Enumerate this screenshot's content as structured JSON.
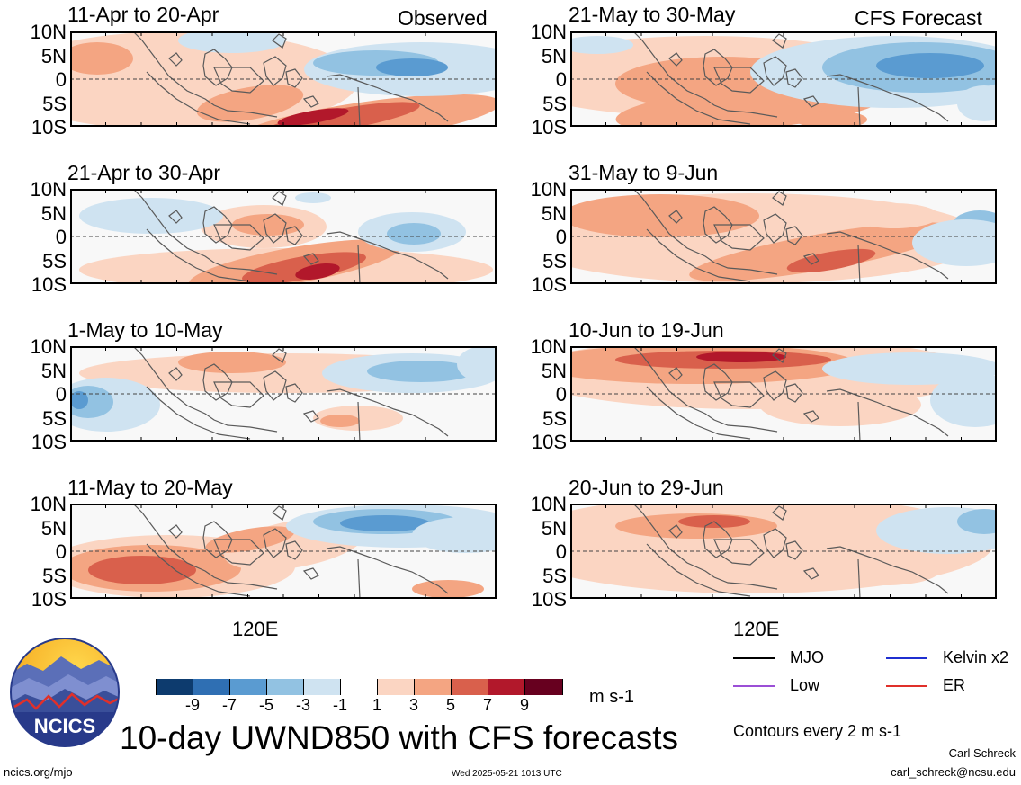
{
  "title": "10-day UWND850 with CFS forecasts",
  "columns": {
    "observed": "Observed",
    "forecast": "CFS Forecast"
  },
  "y_ticks": [
    "10N",
    "5N",
    "0",
    "5S",
    "10S"
  ],
  "x_tick": "120E",
  "panels_left": [
    {
      "title": "11-Apr to 20-Apr"
    },
    {
      "title": "21-Apr to 30-Apr"
    },
    {
      "title": "1-May to 10-May"
    },
    {
      "title": "11-May to 20-May"
    }
  ],
  "panels_right": [
    {
      "title": "21-May to 30-May"
    },
    {
      "title": "31-May to 9-Jun"
    },
    {
      "title": "10-Jun to 19-Jun"
    },
    {
      "title": "20-Jun to 29-Jun"
    }
  ],
  "colorbar": {
    "labels": [
      "-9",
      "-7",
      "-5",
      "-3",
      "-1",
      "1",
      "3",
      "5",
      "7",
      "9"
    ],
    "colors": [
      "#0d3b6e",
      "#2f6fb3",
      "#5a9bd1",
      "#92c2e2",
      "#cfe3f1",
      "#ffffff",
      "#fbd5c2",
      "#f4a582",
      "#d9604c",
      "#b2182b",
      "#67001f"
    ],
    "unit": "m s-1"
  },
  "legend": [
    {
      "label": "MJO",
      "color": "#000000"
    },
    {
      "label": "Kelvin x2",
      "color": "#1f2fd0"
    },
    {
      "label": "Low",
      "color": "#9b4fd6"
    },
    {
      "label": "ER",
      "color": "#e0302a"
    }
  ],
  "contour_note": "Contours every 2 m s-1",
  "logo_text": "NCICS",
  "footer": {
    "left": "ncics.org/mjo",
    "center": "Wed 2025-05-21 1013 UTC",
    "author": "Carl Schreck",
    "email": "carl_schreck@ncsu.edu"
  },
  "chart_data": {
    "type": "heatmap",
    "variable": "UWND850",
    "units": "m s-1",
    "y_ticks": [
      "10N",
      "5N",
      "0",
      "5S",
      "10S"
    ],
    "x_tick": "120E",
    "levels": [
      -9,
      -7,
      -5,
      -3,
      -1,
      1,
      3,
      5,
      7,
      9
    ],
    "panels": [
      {
        "title": "11-Apr to 20-Apr",
        "source": "Observed"
      },
      {
        "title": "21-Apr to 30-Apr",
        "source": "Observed"
      },
      {
        "title": "1-May to 10-May",
        "source": "Observed"
      },
      {
        "title": "11-May to 20-May",
        "source": "Observed"
      },
      {
        "title": "21-May to 30-May",
        "source": "CFS Forecast"
      },
      {
        "title": "31-May to 9-Jun",
        "source": "CFS Forecast"
      },
      {
        "title": "10-Jun to 19-Jun",
        "source": "CFS Forecast"
      },
      {
        "title": "20-Jun to 29-Jun",
        "source": "CFS Forecast"
      }
    ]
  }
}
